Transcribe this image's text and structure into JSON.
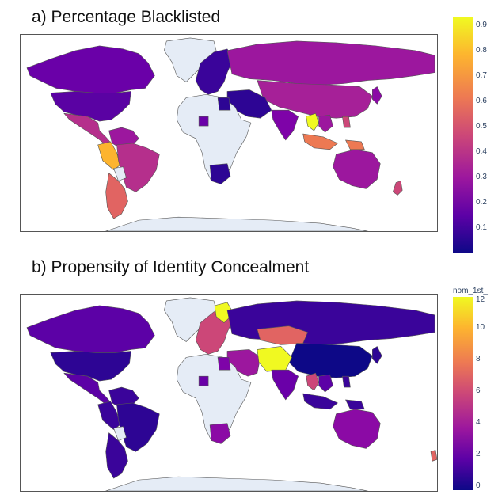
{
  "panels": [
    {
      "title": "a) Percentage Blacklisted",
      "colorbar": {
        "title": "",
        "ticks": [
          "0.1",
          "0.2",
          "0.3",
          "0.4",
          "0.5",
          "0.6",
          "0.7",
          "0.8",
          "0.9"
        ],
        "range": [
          0.01,
          0.92
        ],
        "colorscale": "plasma"
      }
    },
    {
      "title": "b) Propensity of Identity Concealment",
      "colorbar": {
        "title": "nom_1st_",
        "ticks": [
          "0",
          "2",
          "4",
          "6",
          "8",
          "10",
          "12"
        ],
        "range": [
          0,
          12
        ],
        "colorscale": "plasma"
      }
    }
  ],
  "colors": {
    "no_data": "#e5ecf6",
    "plasma": [
      "#0d0887",
      "#5c01a6",
      "#9c179e",
      "#cc4778",
      "#ed7953",
      "#fdb42f",
      "#f0f921"
    ]
  }
}
